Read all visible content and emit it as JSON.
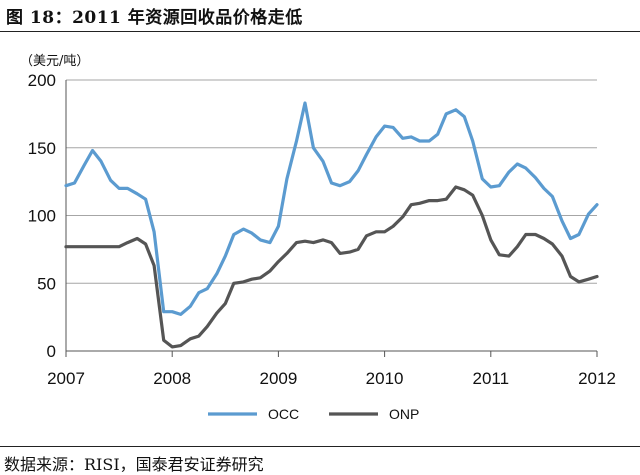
{
  "header": {
    "title": "图 18：2011 年资源回收品价格走低"
  },
  "unit": "（美元/吨）",
  "source": "数据来源：RISI，国泰君安证券研究",
  "chart_data": {
    "type": "line",
    "title": "2011 年资源回收品价格走低",
    "ylabel": "美元/吨",
    "xlabel": "",
    "ylim": [
      0,
      200
    ],
    "xlim": [
      2007,
      2012
    ],
    "yticks": [
      0,
      50,
      100,
      150,
      200
    ],
    "xtick_labels": [
      "2007",
      "2008",
      "2009",
      "2010",
      "2011",
      "2012"
    ],
    "grid": true,
    "legend": "bottom",
    "series": [
      {
        "name": "OCC",
        "color": "#5b9bd0",
        "x": [
          2007.0,
          2007.08,
          2007.17,
          2007.25,
          2007.33,
          2007.42,
          2007.5,
          2007.58,
          2007.67,
          2007.75,
          2007.83,
          2007.92,
          2008.0,
          2008.08,
          2008.17,
          2008.25,
          2008.33,
          2008.42,
          2008.5,
          2008.58,
          2008.67,
          2008.75,
          2008.83,
          2008.92,
          2009.0,
          2009.08,
          2009.17,
          2009.25,
          2009.33,
          2009.42,
          2009.5,
          2009.58,
          2009.67,
          2009.75,
          2009.83,
          2009.92,
          2010.0,
          2010.08,
          2010.17,
          2010.25,
          2010.33,
          2010.42,
          2010.5,
          2010.58,
          2010.67,
          2010.75,
          2010.83,
          2010.92,
          2011.0,
          2011.08,
          2011.17,
          2011.25,
          2011.33,
          2011.42,
          2011.5,
          2011.58,
          2011.67,
          2011.75,
          2011.83,
          2011.92,
          2012.0
        ],
        "values": [
          122,
          124,
          137,
          148,
          140,
          126,
          120,
          120,
          116,
          112,
          88,
          29,
          29,
          27,
          33,
          43,
          46,
          57,
          70,
          86,
          90,
          87,
          82,
          80,
          92,
          127,
          155,
          183,
          150,
          140,
          124,
          122,
          125,
          133,
          145,
          158,
          166,
          165,
          157,
          158,
          155,
          155,
          160,
          175,
          178,
          173,
          155,
          127,
          121,
          122,
          132,
          138,
          135,
          128,
          120,
          114,
          96,
          83,
          86,
          101,
          108
        ]
      },
      {
        "name": "ONP",
        "color": "#555555",
        "x": [
          2007.0,
          2007.08,
          2007.17,
          2007.25,
          2007.33,
          2007.42,
          2007.5,
          2007.58,
          2007.67,
          2007.75,
          2007.83,
          2007.92,
          2008.0,
          2008.08,
          2008.17,
          2008.25,
          2008.33,
          2008.42,
          2008.5,
          2008.58,
          2008.67,
          2008.75,
          2008.83,
          2008.92,
          2009.0,
          2009.08,
          2009.17,
          2009.25,
          2009.33,
          2009.42,
          2009.5,
          2009.58,
          2009.67,
          2009.75,
          2009.83,
          2009.92,
          2010.0,
          2010.08,
          2010.17,
          2010.25,
          2010.33,
          2010.42,
          2010.5,
          2010.58,
          2010.67,
          2010.75,
          2010.83,
          2010.92,
          2011.0,
          2011.08,
          2011.17,
          2011.25,
          2011.33,
          2011.42,
          2011.5,
          2011.58,
          2011.67,
          2011.75,
          2011.83,
          2011.92,
          2012.0
        ],
        "values": [
          77,
          77,
          77,
          77,
          77,
          77,
          77,
          80,
          83,
          79,
          63,
          8,
          3,
          4,
          9,
          11,
          18,
          28,
          35,
          50,
          51,
          53,
          54,
          59,
          66,
          72,
          80,
          81,
          80,
          82,
          80,
          72,
          73,
          75,
          85,
          88,
          88,
          92,
          99,
          108,
          109,
          111,
          111,
          112,
          121,
          119,
          115,
          100,
          82,
          71,
          70,
          77,
          86,
          86,
          83,
          79,
          70,
          55,
          51,
          53,
          55
        ]
      }
    ]
  }
}
